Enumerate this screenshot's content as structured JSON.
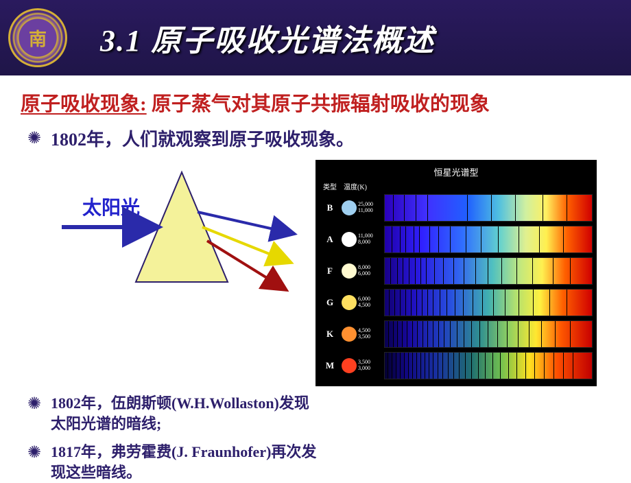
{
  "header": {
    "section_number": "3.1",
    "title_text": "原子吸收光谱法概述",
    "logo_text": "南"
  },
  "subtitle": {
    "lead": "原子吸收现象:",
    "rest": " 原子蒸气对其原子共振辐射吸收的现象"
  },
  "bullet1": "1802年，人们就观察到原子吸收现象。",
  "bullet2": "1802年，伍朗斯顿(W.H.Wollaston)发现太阳光谱的暗线;",
  "bullet3": "1817年，弗劳霍费(J. Fraunhofer)再次发现这些暗线。",
  "prism": {
    "sunlight_label": "太阳光",
    "triangle_fill": "#f4f29a",
    "triangle_stroke": "#2d1f6b",
    "incident_arrow_color": "#2a2aaa",
    "dispersed_colors": [
      "#2a2aaa",
      "#e6d800",
      "#a01010"
    ]
  },
  "spectrum": {
    "panel_title": "恒星光谱型",
    "header_type": "类型",
    "header_temp": "温度(K)",
    "rows": [
      {
        "label": "B",
        "circle": "#9fcff0",
        "temp1": "25,000",
        "temp2": "11,000",
        "gradient": "b"
      },
      {
        "label": "A",
        "circle": "#ffffff",
        "temp1": "11,000",
        "temp2": "8,000",
        "gradient": "a"
      },
      {
        "label": "F",
        "circle": "#fffad0",
        "temp1": "8,000",
        "temp2": "6,000",
        "gradient": "f"
      },
      {
        "label": "G",
        "circle": "#ffe060",
        "temp1": "6,000",
        "temp2": "4,500",
        "gradient": "g"
      },
      {
        "label": "K",
        "circle": "#ff9030",
        "temp1": "4,500",
        "temp2": "3,500",
        "gradient": "k"
      },
      {
        "label": "M",
        "circle": "#ff4020",
        "temp1": "3,500",
        "temp2": "3,000",
        "gradient": "m"
      }
    ],
    "gradients": {
      "b": "linear-gradient(to right, #2a00bb 0%, #4030ff 20%, #2060ff 40%, #50c0e0 55%, #d0f0a0 68%, #fff060 78%, #ff6000 88%, #d00000 100%)",
      "a": "linear-gradient(to right, #2000aa 0%, #3020ff 18%, #3070ff 38%, #60d0d0 55%, #e0f090 68%, #fff050 78%, #ff6000 88%, #d00000 100%)",
      "f": "linear-gradient(to right, #180088 0%, #2818e0 16%, #3060f0 35%, #50c0c0 52%, #c0e880 65%, #fff050 76%, #ff6000 87%, #d00000 100%)",
      "g": "linear-gradient(to right, #100070 0%, #2010c0 14%, #2850e0 32%, #40b0b0 50%, #b0e070 63%, #fff040 75%, #ff6000 86%, #d00000 100%)",
      "k": "linear-gradient(to right, #080050 0%, #1808a0 12%, #2040c0 28%, #309090 46%, #90d060 60%, #ffe830 73%, #ff5800 85%, #c80000 100%)",
      "m": "linear-gradient(to right, #040030 0%, #100680 10%, #1830a0 25%, #207070 42%, #70c050 56%, #ffe020 70%, #ff5000 83%, #c00000 100%)"
    },
    "absorption_lines": {
      "b": [
        12,
        28,
        45,
        62,
        120,
        155,
        190,
        230,
        265
      ],
      "a": [
        10,
        22,
        30,
        42,
        50,
        65,
        78,
        95,
        118,
        140,
        165,
        195,
        225,
        260
      ],
      "f": [
        8,
        18,
        26,
        35,
        44,
        52,
        60,
        72,
        85,
        100,
        115,
        132,
        150,
        170,
        192,
        215,
        245,
        270
      ],
      "g": [
        6,
        14,
        22,
        30,
        38,
        46,
        54,
        62,
        70,
        80,
        90,
        102,
        114,
        128,
        142,
        158,
        175,
        195,
        216,
        240,
        265
      ],
      "k": [
        5,
        12,
        18,
        25,
        32,
        40,
        47,
        55,
        62,
        70,
        78,
        86,
        95,
        105,
        115,
        126,
        138,
        150,
        164,
        178,
        194,
        210,
        228,
        248,
        270
      ],
      "m": [
        4,
        10,
        16,
        22,
        28,
        34,
        40,
        46,
        52,
        58,
        64,
        70,
        77,
        84,
        92,
        100,
        108,
        117,
        126,
        136,
        146,
        157,
        168,
        180,
        192,
        205,
        218,
        232,
        246,
        260,
        274
      ]
    }
  },
  "colors": {
    "header_bg": "#1f1548",
    "subtitle_color": "#c02020",
    "bullet_color": "#2d1f6b"
  }
}
